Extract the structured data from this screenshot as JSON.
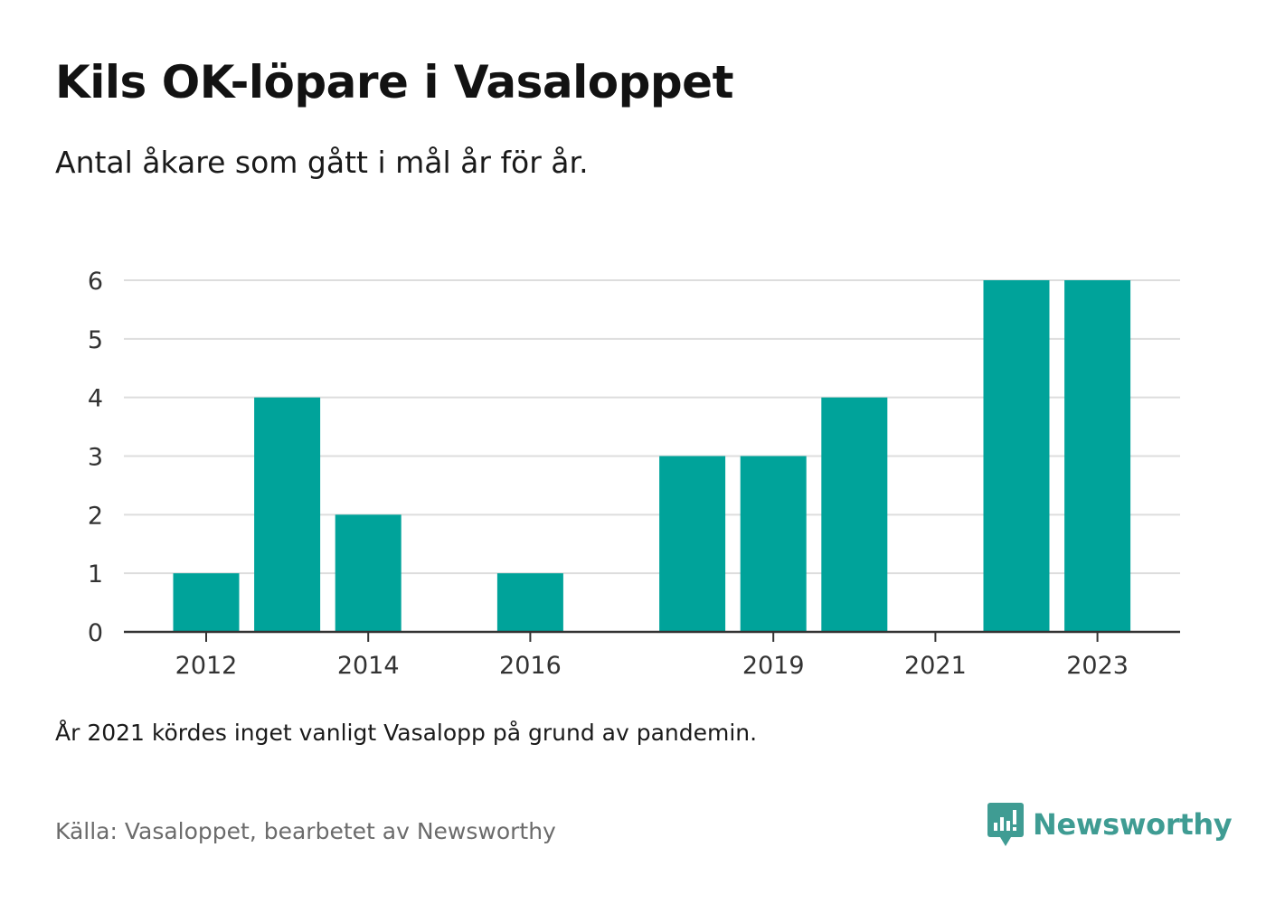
{
  "title": "Kils OK-löpare i Vasaloppet",
  "subtitle": "Antal åkare som gått i mål år för år.",
  "note": "År 2021 kördes inget vanligt Vasalopp på grund av pandemin.",
  "source": "Källa: Vasaloppet, bearbetet av Newsworthy",
  "logo": {
    "text": "Newsworthy",
    "icon": "newsworthy-logo-icon",
    "color": "#3f9c93"
  },
  "chart_data": {
    "type": "bar",
    "title": "Kils OK-löpare i Vasaloppet",
    "subtitle": "Antal åkare som gått i mål år för år.",
    "categories": [
      "2012",
      "2013",
      "2014",
      "2015",
      "2016",
      "2017",
      "2018",
      "2019",
      "2020",
      "2021",
      "2022",
      "2023"
    ],
    "values": [
      1,
      4,
      2,
      0,
      1,
      0,
      3,
      3,
      4,
      0,
      6,
      6
    ],
    "x_tick_labels": [
      "2012",
      "2014",
      "2016",
      "2019",
      "2021",
      "2023"
    ],
    "y_ticks": [
      0,
      1,
      2,
      3,
      4,
      5,
      6
    ],
    "ylim": [
      0,
      6
    ],
    "xlabel": "",
    "ylabel": "",
    "grid": true,
    "bar_color": "#00a39a"
  }
}
